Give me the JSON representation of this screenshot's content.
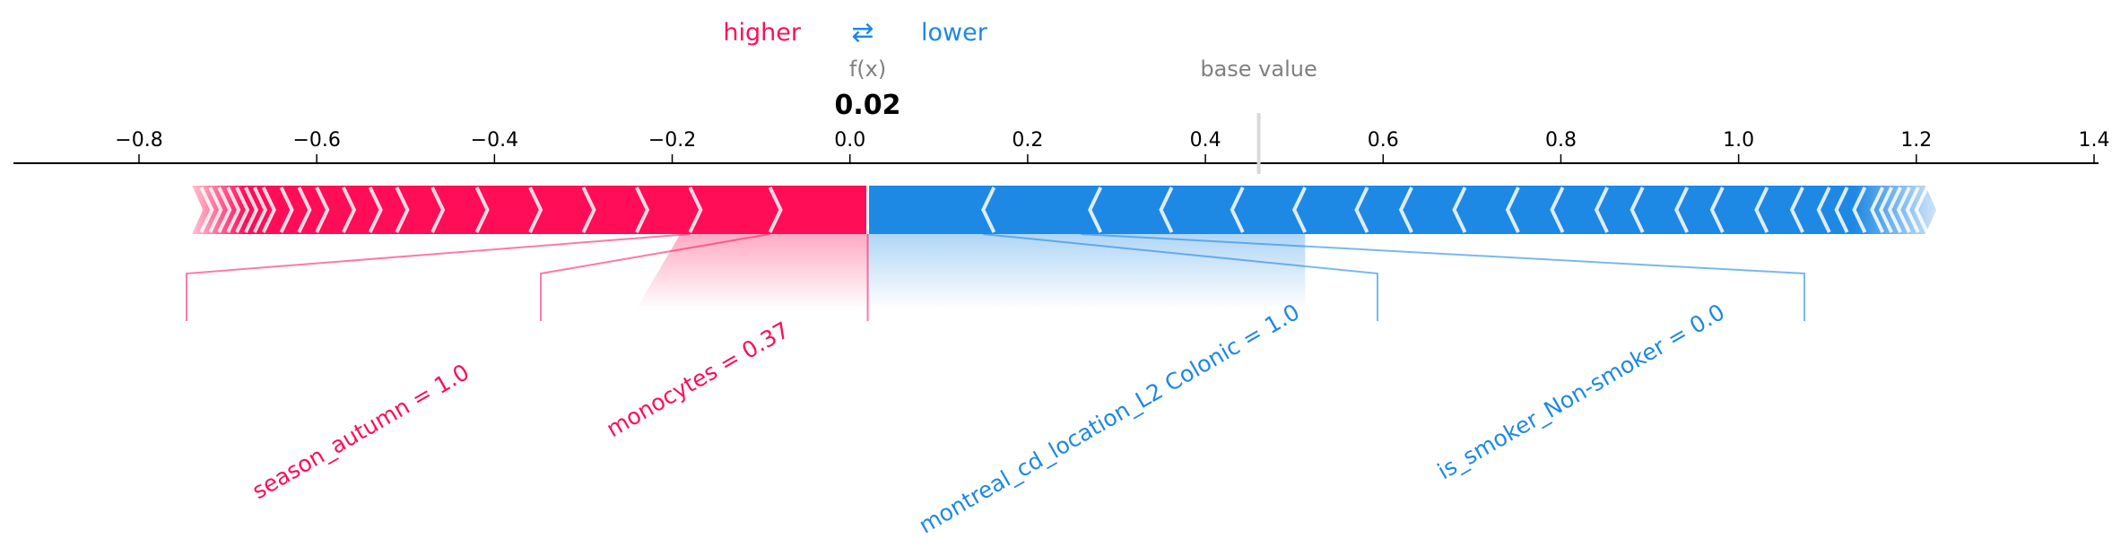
{
  "legend": {
    "higher_label": "higher",
    "arrows_glyph": "⇄",
    "lower_label": "lower",
    "higher_color": "#ff0d57",
    "lower_color": "#1e88e5"
  },
  "chart_data": {
    "type": "force",
    "output_label": "f(x)",
    "output_value": 0.02,
    "output_value_text": "0.02",
    "base_value_label": "base value",
    "base_value": 0.46,
    "xlim": [
      -0.9,
      1.42
    ],
    "ticks": [
      -0.8,
      -0.6,
      -0.4,
      -0.2,
      0.0,
      0.2,
      0.4,
      0.6,
      0.8,
      1.0,
      1.2,
      1.4
    ],
    "tick_labels": [
      "−0.8",
      "−0.6",
      "−0.4",
      "−0.2",
      "0.0",
      "0.2",
      "0.4",
      "0.6",
      "0.8",
      "1.0",
      "1.2",
      "1.4"
    ],
    "positive_features": [
      {
        "label": "monocytes = 0.37",
        "start": -0.09,
        "end": 0.02
      },
      {
        "label": "season_autumn = 1.0",
        "start": -0.18,
        "end": -0.09
      }
    ],
    "negative_features": [
      {
        "label": "montreal_cd_location_L2 Colonic = 1.0",
        "start": 0.02,
        "end": 0.15
      },
      {
        "label": "is_smoker_Non-smoker = 0.0",
        "start": 0.15,
        "end": 0.26
      }
    ],
    "positive_span": [
      -0.74,
      0.02
    ],
    "negative_span": [
      0.02,
      1.21
    ],
    "positive_separators": [
      -0.73,
      -0.72,
      -0.71,
      -0.7,
      -0.69,
      -0.68,
      -0.67,
      -0.66,
      -0.64,
      -0.62,
      -0.6,
      -0.57,
      -0.54,
      -0.51,
      -0.47,
      -0.42,
      -0.36,
      -0.3,
      -0.24,
      -0.18,
      -0.09
    ],
    "negative_separators": [
      0.15,
      0.27,
      0.35,
      0.43,
      0.5,
      0.57,
      0.62,
      0.68,
      0.74,
      0.79,
      0.84,
      0.88,
      0.93,
      0.97,
      1.02,
      1.06,
      1.09,
      1.11,
      1.13,
      1.15,
      1.16,
      1.17,
      1.18,
      1.19,
      1.2
    ]
  }
}
